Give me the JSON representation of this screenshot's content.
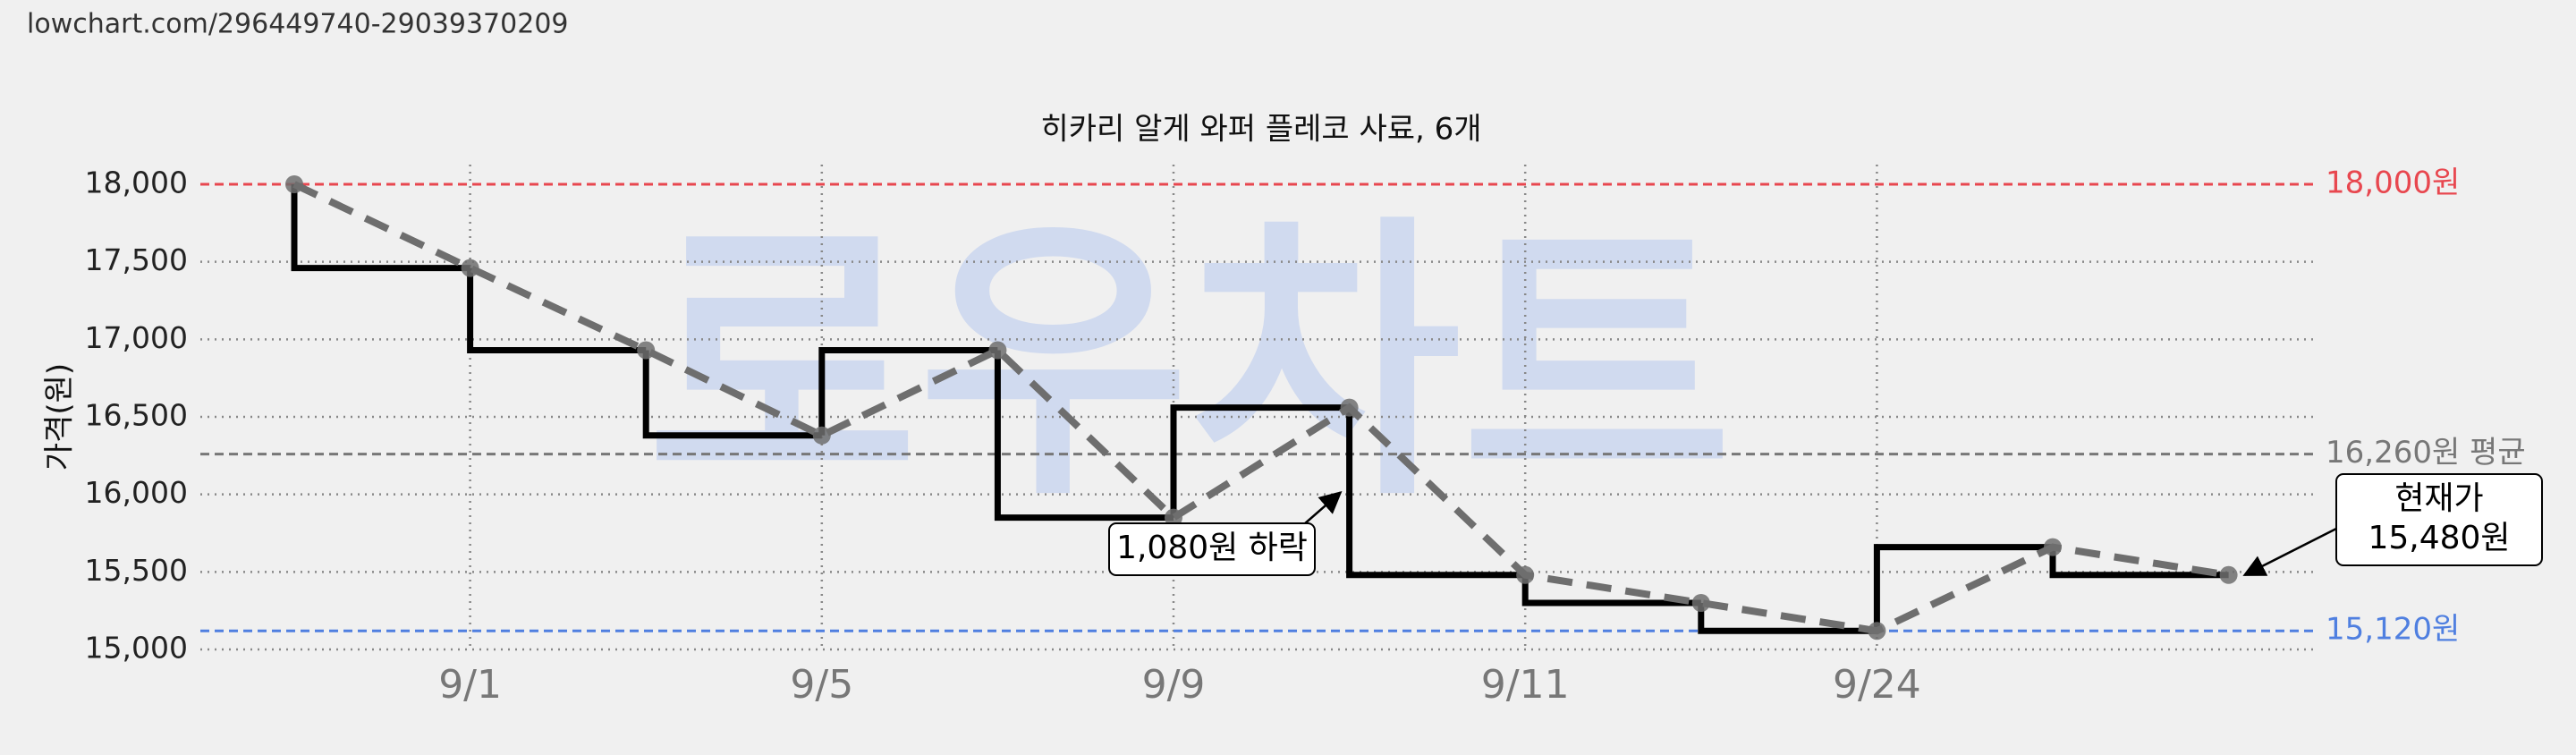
{
  "header": "lowchart.com/296449740-29039370209",
  "chart_data": {
    "type": "line",
    "title": "히카리 알게 와퍼 플레코 사료, 6개",
    "y_label": "가격(원)",
    "watermark": "로우차트",
    "categories": [
      null,
      "9/1",
      null,
      "9/5",
      null,
      "9/9",
      null,
      "9/11",
      null,
      "9/24",
      null,
      null
    ],
    "series": [
      {
        "name": "가격",
        "color": "#6e6e6e",
        "step_color": "#000000",
        "values": [
          18000,
          17460,
          16930,
          16380,
          16930,
          15850,
          16560,
          15480,
          15300,
          15120,
          15660,
          15480
        ]
      }
    ],
    "ylim": [
      15000,
      18000
    ],
    "yticks": [
      {
        "value": 15000,
        "label": "15,000"
      },
      {
        "value": 15500,
        "label": "15,500"
      },
      {
        "value": 16000,
        "label": "16,000"
      },
      {
        "value": 16500,
        "label": "16,500"
      },
      {
        "value": 17000,
        "label": "17,000"
      },
      {
        "value": 17500,
        "label": "17,500"
      },
      {
        "value": 18000,
        "label": "18,000"
      }
    ],
    "grid": true,
    "reference_lines": [
      {
        "value": 18000,
        "label": "18,000원",
        "color": "#e8474f"
      },
      {
        "value": 16260,
        "label": "16,260원 평균",
        "color": "#777777"
      },
      {
        "value": 15120,
        "label": "15,120원",
        "color": "#4f7fe0"
      }
    ],
    "annotations": [
      {
        "text": "1,080원 하락",
        "point": 6
      },
      {
        "text": "현재가\n15,480원",
        "point": 11
      }
    ]
  }
}
